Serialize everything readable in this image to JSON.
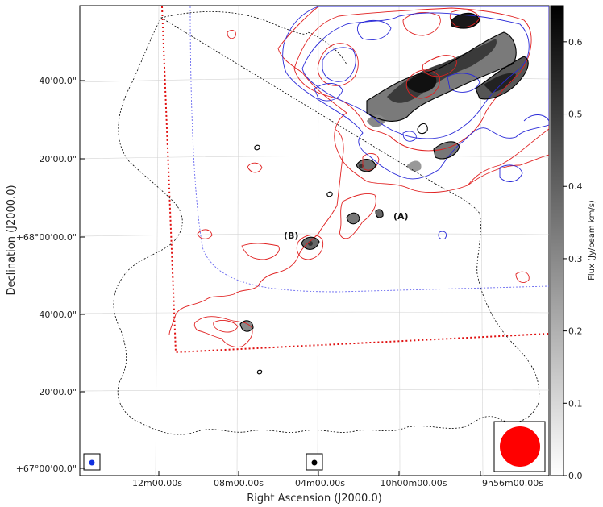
{
  "chart_data": {
    "type": "heatmap",
    "title": "",
    "xlabel": "Right Ascension (J2000.0)",
    "ylabel": "Declination (J2000.0)",
    "x_ticks": [
      "12m00.00s",
      "08m00.00s",
      "04m00.00s",
      "10h00m00.00s",
      "9h56m00.00s"
    ],
    "y_ticks": [
      "+67°00'00.0\"",
      "20'00.0\"",
      "40'00.0\"",
      "+68°00'00.0\"",
      "20'00.0\"",
      "40'00.0\""
    ],
    "colorbar": {
      "label": "Flux (Jy/beam km/s)",
      "ticks": [
        "0.0",
        "0.1",
        "0.2",
        "0.3",
        "0.4",
        "0.5",
        "0.6"
      ],
      "range": [
        0.0,
        0.65
      ],
      "colormap": "gray_r"
    },
    "annotations": [
      "(A)",
      "(B)"
    ],
    "grid": true,
    "colors": {
      "contour_black": "#000000",
      "contour_red": "#e02020",
      "contour_blue": "#2a2ad8",
      "footprint_red": "#e01010",
      "footprint_blue": "#6a6af0",
      "coverage_black": "#000000",
      "beam_large": "#ff0000",
      "beam_small_blue": "#1030e0"
    }
  }
}
